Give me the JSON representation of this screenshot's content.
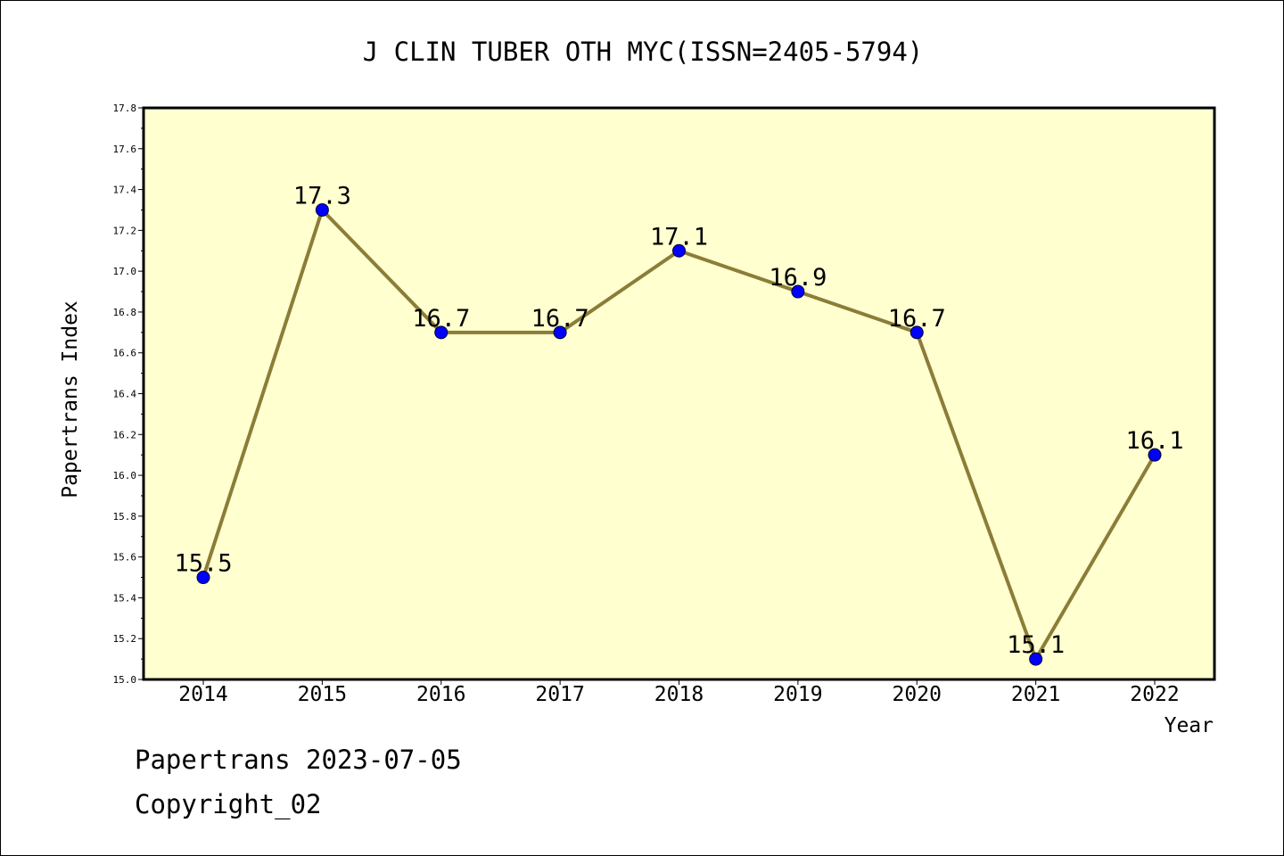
{
  "chart_data": {
    "type": "line",
    "title": "J CLIN TUBER OTH MYC(ISSN=2405-5794)",
    "xlabel": "Year",
    "ylabel": "Papertrans Index",
    "categories": [
      "2014",
      "2015",
      "2016",
      "2017",
      "2018",
      "2019",
      "2020",
      "2021",
      "2022"
    ],
    "series": [
      {
        "values": [
          15.5,
          17.3,
          16.7,
          16.7,
          17.1,
          16.9,
          16.7,
          15.1,
          16.1
        ],
        "labels": [
          "15.5",
          "17.3",
          "16.7",
          "16.7",
          "17.1",
          "16.9",
          "16.7",
          "15.1",
          "16.1"
        ]
      }
    ],
    "ylim": [
      15.0,
      17.8
    ],
    "yticks": [
      "15.0",
      "15.2",
      "15.4",
      "15.6",
      "15.8",
      "16.0",
      "16.2",
      "16.4",
      "16.6",
      "16.8",
      "17.0",
      "17.2",
      "17.4",
      "17.6",
      "17.8"
    ],
    "grid": false,
    "legend": "none",
    "colors": {
      "plot_background": "#ffffd0",
      "line": "#8b7d37",
      "marker": "#0000ff"
    }
  },
  "footer": {
    "line1": "Papertrans 2023-07-05",
    "line2": "Copyright_02"
  }
}
